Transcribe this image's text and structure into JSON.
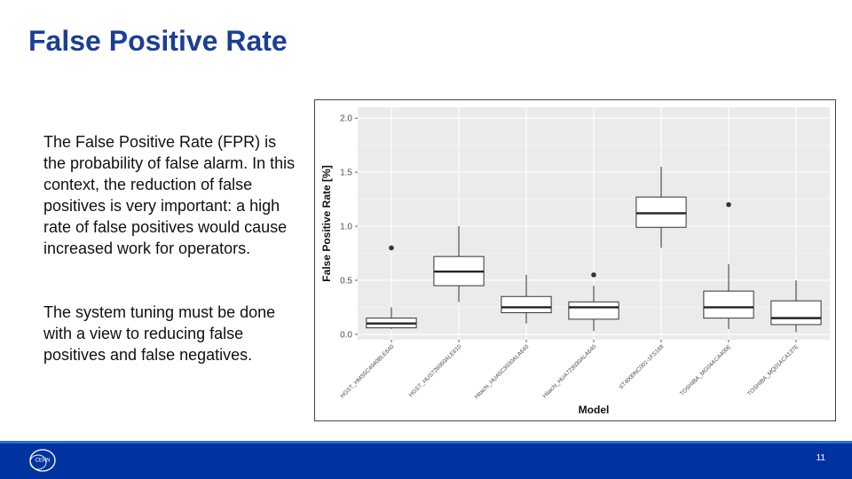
{
  "slide": {
    "title": "False Positive Rate",
    "paragraph1": "The False Positive Rate (FPR) is the probability of false alarm. In this context, the reduction of false positives is very important: a high rate of false positives would cause increased work for operators.",
    "paragraph2": "The system tuning must be done with a view to reducing false positives and false negatives.",
    "page_number": "11",
    "logo_text": "CERN"
  },
  "chart_data": {
    "type": "box",
    "title": "",
    "xlabel": "Model",
    "ylabel": "False Positive Rate [%]",
    "ylim": [
      -0.05,
      2.1
    ],
    "yticks": [
      0.0,
      0.5,
      1.0,
      1.5,
      2.0
    ],
    "ytick_labels": [
      "0.0",
      "0.5",
      "1.0",
      "1.5",
      "2.0"
    ],
    "grid": true,
    "panel_color": "#ebebeb",
    "categories": [
      "HGST_HMS5C4040BLE640",
      "HGST_HUS726060ALE610",
      "Hitachi_HUA5C3030ALA640",
      "Hitachi_HUA723030ALA640",
      "ST4000NC001-1FS168",
      "TOSHIBA_MG04ACA400E",
      "TOSHIBA_MQ01ACA137E"
    ],
    "boxes": [
      {
        "lower": 0.05,
        "q1": 0.06,
        "median": 0.1,
        "q3": 0.15,
        "upper": 0.25,
        "outliers": [
          0.8
        ]
      },
      {
        "lower": 0.3,
        "q1": 0.45,
        "median": 0.58,
        "q3": 0.72,
        "upper": 1.0,
        "outliers": []
      },
      {
        "lower": 0.1,
        "q1": 0.2,
        "median": 0.25,
        "q3": 0.35,
        "upper": 0.55,
        "outliers": []
      },
      {
        "lower": 0.03,
        "q1": 0.14,
        "median": 0.25,
        "q3": 0.3,
        "upper": 0.45,
        "outliers": [
          0.55
        ]
      },
      {
        "lower": 0.8,
        "q1": 0.99,
        "median": 1.12,
        "q3": 1.27,
        "upper": 1.55,
        "outliers": []
      },
      {
        "lower": 0.05,
        "q1": 0.15,
        "median": 0.25,
        "q3": 0.4,
        "upper": 0.65,
        "outliers": [
          1.2
        ]
      },
      {
        "lower": 0.02,
        "q1": 0.09,
        "median": 0.15,
        "q3": 0.31,
        "upper": 0.5,
        "outliers": []
      }
    ]
  }
}
